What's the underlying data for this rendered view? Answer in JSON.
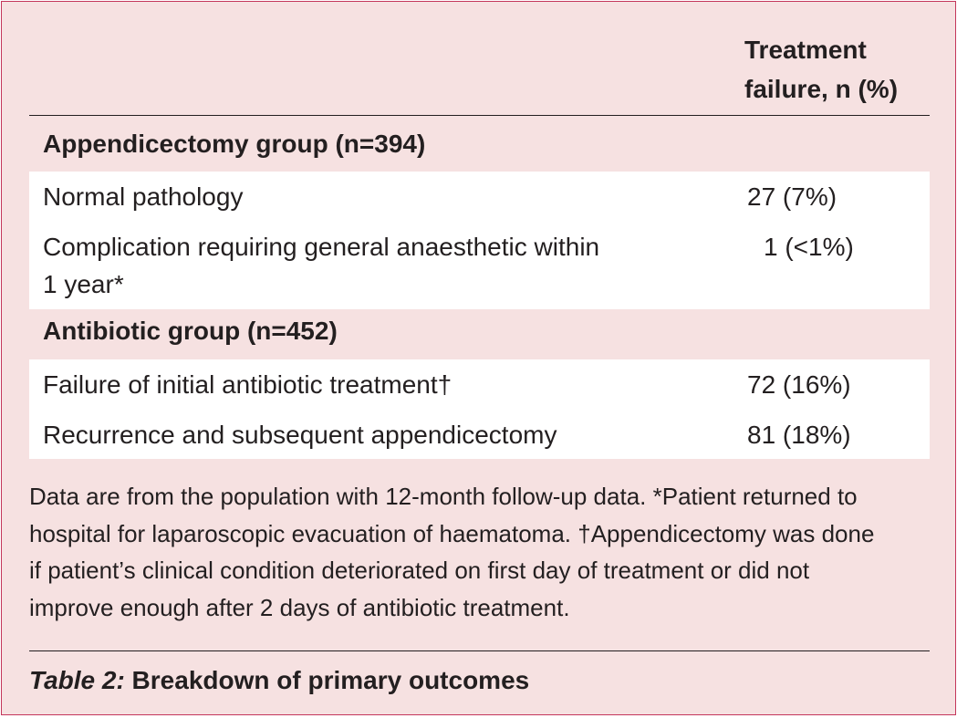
{
  "table": {
    "column_header": {
      "line1": "Treatment",
      "line2": "failure, n (%)"
    },
    "groups": [
      {
        "heading": "Appendicectomy group (n=394)",
        "rows": [
          {
            "label": "Normal pathology",
            "value": "27 (7%)"
          },
          {
            "label_line1": "Complication requiring general anaesthetic within",
            "label_line2": "1 year*",
            "value": "1 (<1%)"
          }
        ]
      },
      {
        "heading": "Antibiotic group (n=452)",
        "rows": [
          {
            "label": "Failure of initial antibiotic treatment†",
            "value": "72 (16%)"
          },
          {
            "label": "Recurrence and subsequent appendicectomy",
            "value": "81 (18%)"
          }
        ]
      }
    ]
  },
  "footnote": {
    "line1": "Data are from the population with 12-month follow-up data. *Patient returned to",
    "line2": "hospital for laparoscopic evacuation of haematoma. †Appendicectomy was done",
    "line3": "if patient’s clinical condition deteriorated on first day of treatment or did not",
    "line4": "improve enough after 2 days of antibiotic treatment."
  },
  "caption": {
    "label": "Table 2:",
    "title": " Breakdown of primary outcomes"
  },
  "colors": {
    "background": "#f6e1e1",
    "border": "#c4365b",
    "text": "#231f20",
    "row_background": "#ffffff"
  }
}
